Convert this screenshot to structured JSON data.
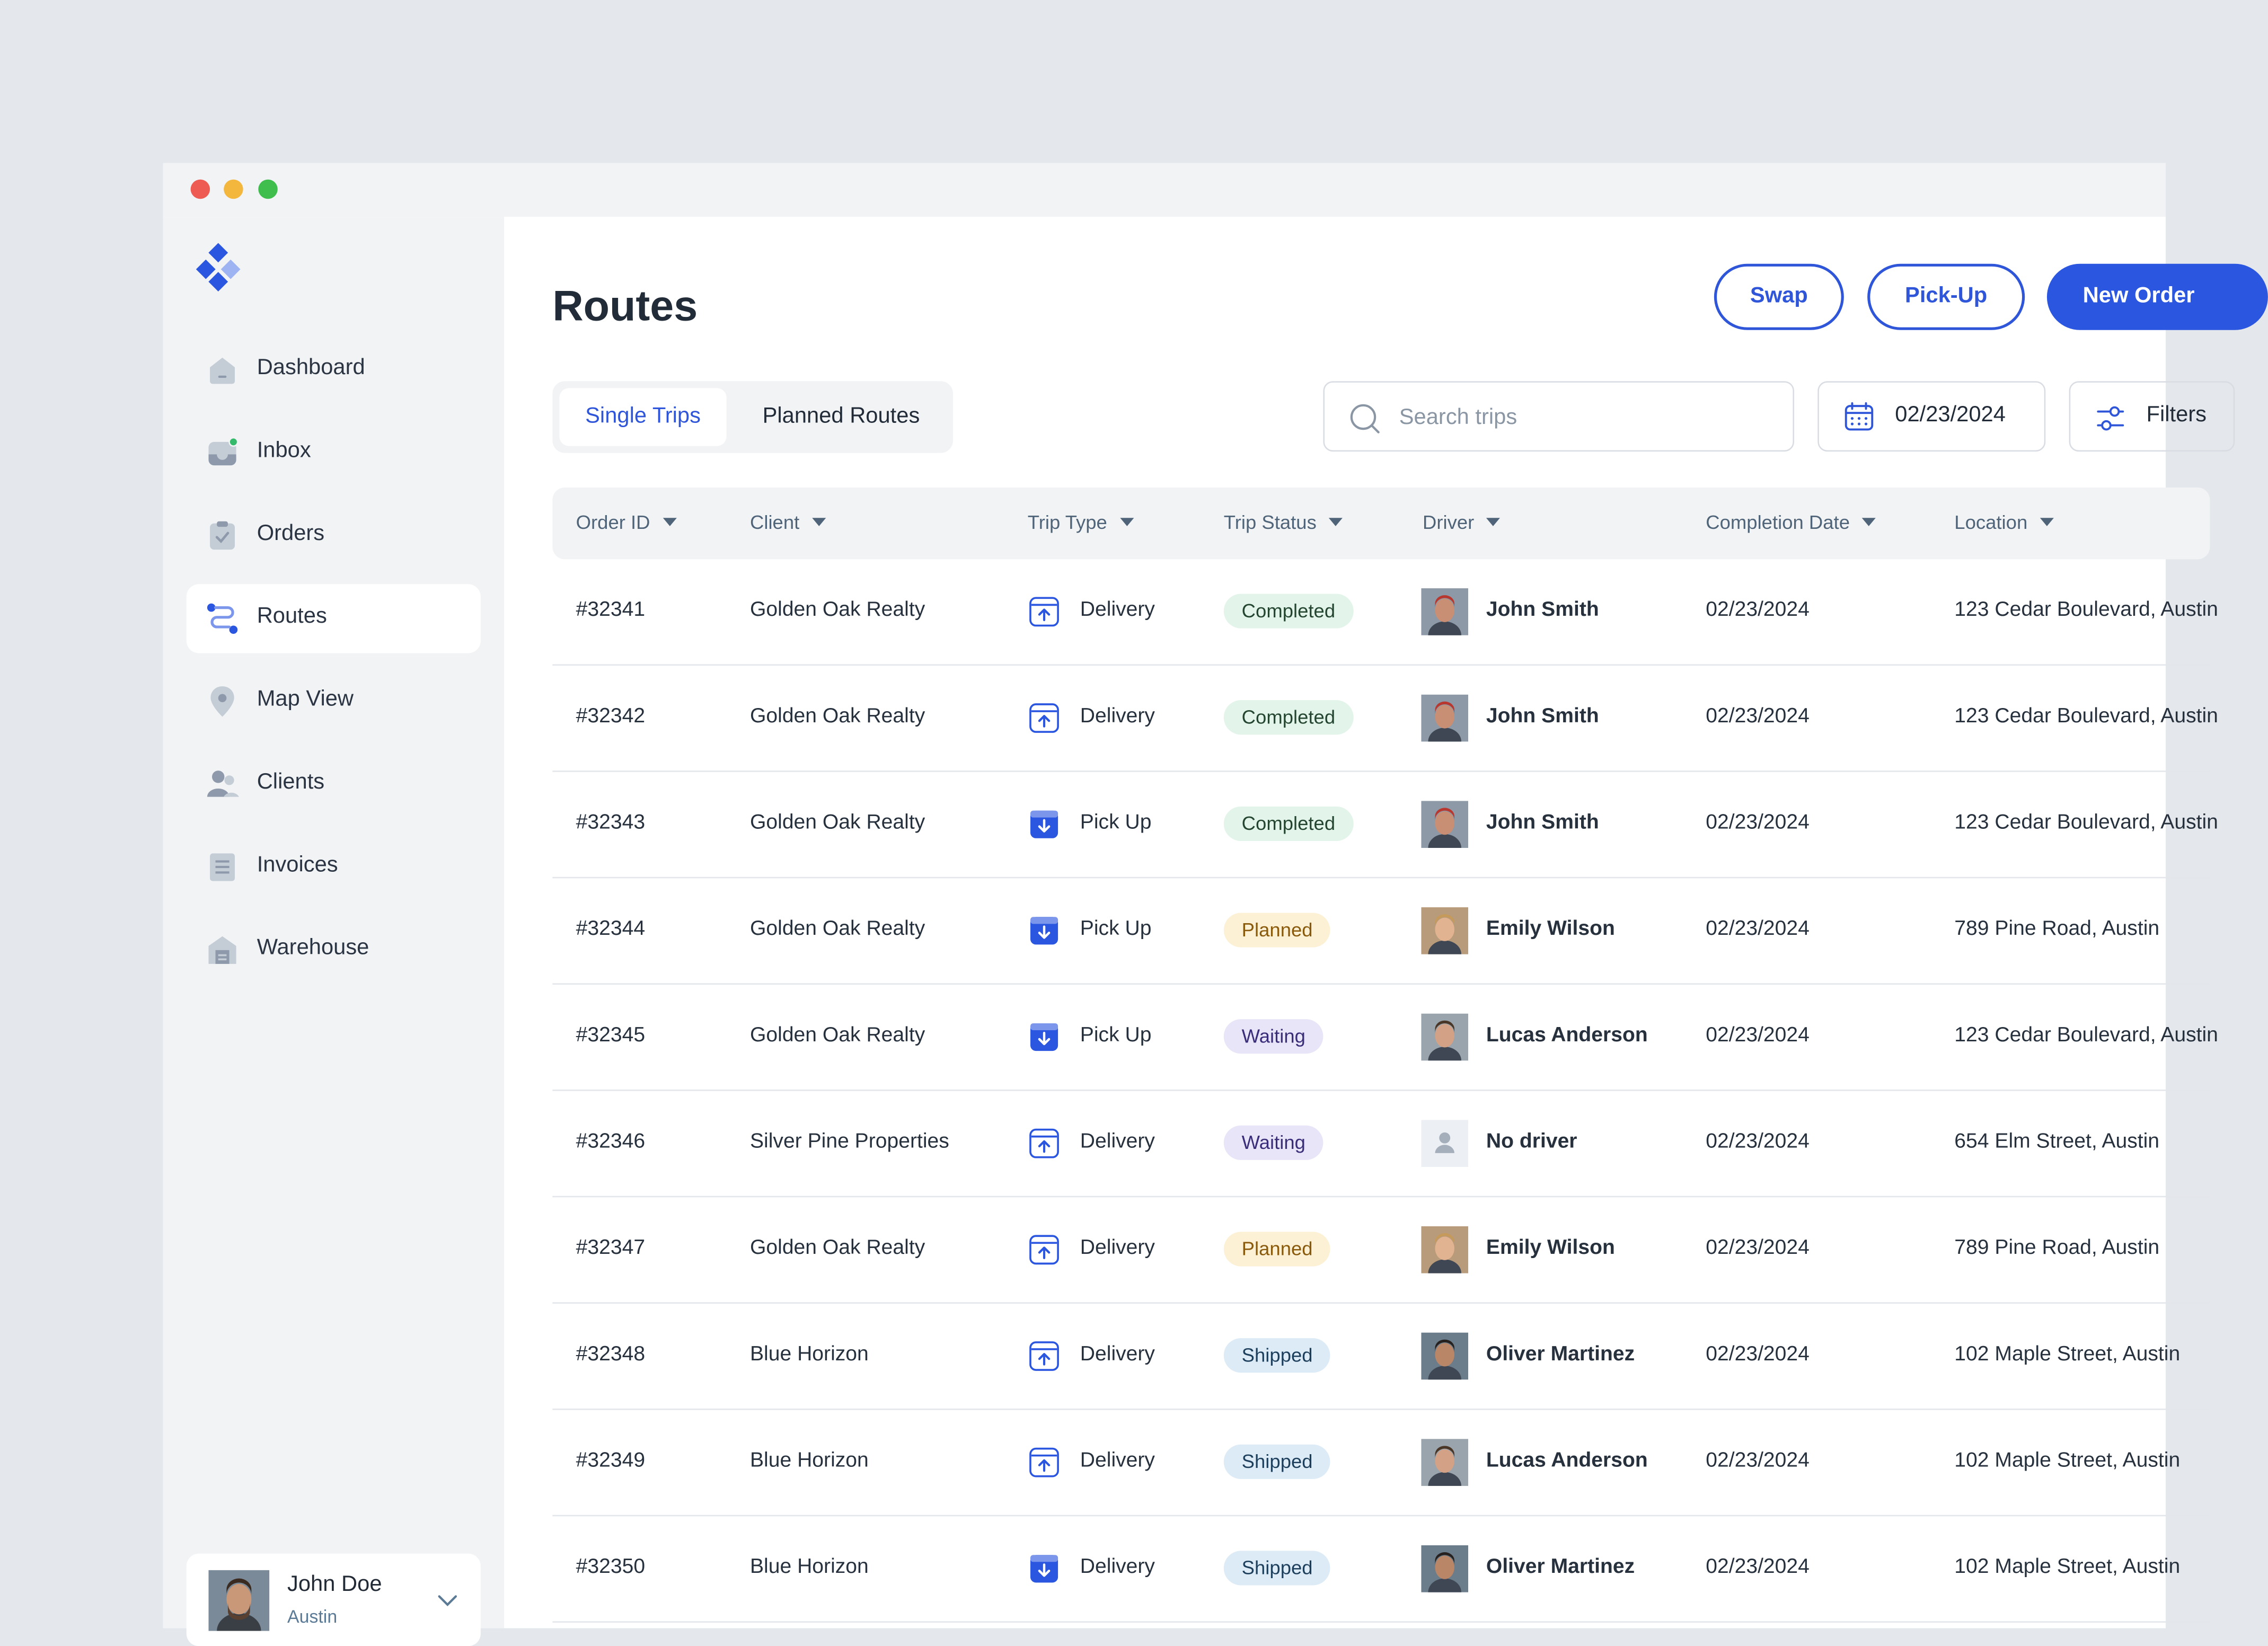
{
  "colors": {
    "accent": "#2b56e0",
    "badge_completed": "#e3f4ea",
    "badge_planned": "#fcf1d4",
    "badge_waiting": "#e9e5f8",
    "badge_shipped": "#dcebf6"
  },
  "sidebar": {
    "logo": "diamond-logo-icon",
    "items": [
      {
        "label": "Dashboard",
        "icon": "home-icon"
      },
      {
        "label": "Inbox",
        "icon": "inbox-icon"
      },
      {
        "label": "Orders",
        "icon": "clipboard-icon"
      },
      {
        "label": "Routes",
        "icon": "route-icon",
        "active": true
      },
      {
        "label": "Map View",
        "icon": "map-pin-icon"
      },
      {
        "label": "Clients",
        "icon": "users-icon"
      },
      {
        "label": "Invoices",
        "icon": "invoice-icon"
      },
      {
        "label": "Warehouse",
        "icon": "warehouse-icon"
      }
    ],
    "user": {
      "name": "John Doe",
      "city": "Austin"
    }
  },
  "header": {
    "title": "Routes",
    "buttons": {
      "swap": "Swap",
      "pickup": "Pick-Up",
      "new_order": "New Order"
    }
  },
  "tabs": [
    {
      "label": "Single Trips",
      "active": true
    },
    {
      "label": "Planned Routes",
      "active": false
    }
  ],
  "search": {
    "placeholder": "Search trips",
    "value": ""
  },
  "date_filter": {
    "value": "02/23/2024"
  },
  "filter_button": {
    "label": "Filters"
  },
  "table": {
    "columns": [
      "Order ID",
      "Client",
      "Trip Type",
      "Trip Status",
      "Driver",
      "Completion Date",
      "Location"
    ],
    "rows": [
      {
        "order_id": "#32341",
        "client": "Golden Oak Realty",
        "trip_type": "Delivery",
        "status": "Completed",
        "driver": "John Smith",
        "date": "02/23/2024",
        "location": "123 Cedar Boulevard, Austin"
      },
      {
        "order_id": "#32342",
        "client": "Golden Oak Realty",
        "trip_type": "Delivery",
        "status": "Completed",
        "driver": "John Smith",
        "date": "02/23/2024",
        "location": "123 Cedar Boulevard, Austin"
      },
      {
        "order_id": "#32343",
        "client": "Golden Oak Realty",
        "trip_type": "Pick Up",
        "status": "Completed",
        "driver": "John Smith",
        "date": "02/23/2024",
        "location": "123 Cedar Boulevard, Austin"
      },
      {
        "order_id": "#32344",
        "client": "Golden Oak Realty",
        "trip_type": "Pick Up",
        "status": "Planned",
        "driver": "Emily Wilson",
        "date": "02/23/2024",
        "location": "789 Pine Road, Austin"
      },
      {
        "order_id": "#32345",
        "client": "Golden Oak Realty",
        "trip_type": "Pick Up",
        "status": "Waiting",
        "driver": "Lucas Anderson",
        "date": "02/23/2024",
        "location": "123 Cedar Boulevard, Austin"
      },
      {
        "order_id": "#32346",
        "client": "Silver Pine Properties",
        "trip_type": "Delivery",
        "status": "Waiting",
        "driver": "No driver",
        "date": "02/23/2024",
        "location": "654 Elm Street, Austin"
      },
      {
        "order_id": "#32347",
        "client": "Golden Oak Realty",
        "trip_type": "Delivery",
        "status": "Planned",
        "driver": "Emily Wilson",
        "date": "02/23/2024",
        "location": "789 Pine Road, Austin"
      },
      {
        "order_id": "#32348",
        "client": "Blue Horizon",
        "trip_type": "Delivery",
        "status": "Shipped",
        "driver": "Oliver Martinez",
        "date": "02/23/2024",
        "location": "102 Maple Street, Austin"
      },
      {
        "order_id": "#32349",
        "client": "Blue Horizon",
        "trip_type": "Delivery",
        "status": "Shipped",
        "driver": "Lucas Anderson",
        "date": "02/23/2024",
        "location": "102 Maple Street, Austin"
      },
      {
        "order_id": "#32350",
        "client": "Blue Horizon",
        "trip_type": "Delivery",
        "status": "Shipped",
        "driver": "Oliver Martinez",
        "date": "02/23/2024",
        "location": "102 Maple Street, Austin"
      }
    ]
  }
}
